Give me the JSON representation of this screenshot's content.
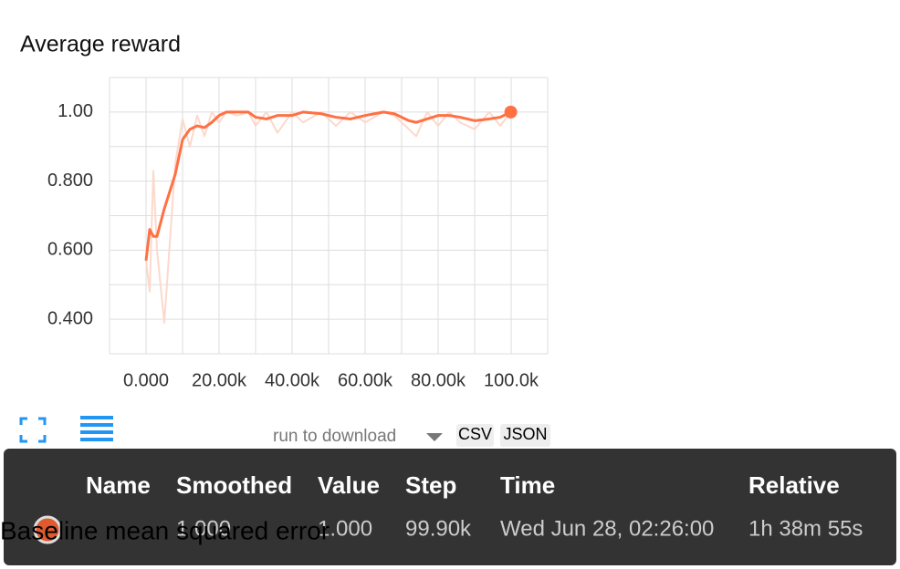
{
  "chart_data": {
    "type": "line",
    "title": "Average reward",
    "xlim": [
      -10000,
      110000
    ],
    "ylim": [
      0.3,
      1.1
    ],
    "xticks": [
      {
        "value": 0,
        "label": "0.000"
      },
      {
        "value": 20000,
        "label": "20.00k"
      },
      {
        "value": 40000,
        "label": "40.00k"
      },
      {
        "value": 60000,
        "label": "60.00k"
      },
      {
        "value": 80000,
        "label": "80.00k"
      },
      {
        "value": 100000,
        "label": "100.0k"
      }
    ],
    "yticks": [
      {
        "value": 0.4,
        "label": "0.400"
      },
      {
        "value": 0.6,
        "label": "0.600"
      },
      {
        "value": 0.8,
        "label": "0.800"
      },
      {
        "value": 1.0,
        "label": "1.00"
      }
    ],
    "grid": true,
    "x": [
      0,
      1000,
      2000,
      3000,
      5000,
      8000,
      10000,
      12000,
      14000,
      16000,
      18000,
      20000,
      22000,
      25000,
      28000,
      30000,
      33000,
      36000,
      40000,
      43000,
      48000,
      52000,
      56000,
      60000,
      65000,
      68000,
      72000,
      74000,
      77000,
      80000,
      83000,
      86000,
      90000,
      94000,
      97000,
      99900
    ],
    "series": [
      {
        "color": "#fcd9cc",
        "values": [
          0.57,
          0.48,
          0.83,
          0.6,
          0.39,
          0.85,
          0.98,
          0.9,
          0.99,
          0.93,
          1.0,
          0.97,
          1.0,
          0.99,
          1.0,
          0.96,
          1.0,
          0.94,
          1.0,
          0.97,
          1.0,
          0.96,
          1.0,
          0.97,
          1.0,
          0.99,
          0.95,
          0.93,
          1.0,
          0.96,
          1.0,
          0.97,
          0.95,
          1.0,
          0.96,
          1.0
        ]
      },
      {
        "color": "#ff7043",
        "values": [
          0.57,
          0.66,
          0.64,
          0.64,
          0.72,
          0.82,
          0.92,
          0.95,
          0.96,
          0.955,
          0.97,
          0.99,
          1.0,
          1.0,
          1.0,
          0.985,
          0.98,
          0.99,
          0.99,
          1.0,
          0.995,
          0.985,
          0.98,
          0.99,
          1.0,
          0.995,
          0.975,
          0.97,
          0.98,
          0.99,
          0.99,
          0.985,
          0.975,
          0.98,
          0.985,
          1.0
        ]
      }
    ]
  },
  "download": {
    "placeholder": "run to download",
    "csv": "CSV",
    "json": "JSON"
  },
  "tooltip": {
    "headers": [
      "Name",
      "Smoothed",
      "Value",
      "Step",
      "Time",
      "Relative"
    ],
    "row": {
      "name": "Baseline mean squared error",
      "smoothed": "1.000",
      "value": "1.000",
      "step": "99.90k",
      "time": "Wed Jun 28, 02:26:00",
      "relative": "1h 38m 55s"
    }
  }
}
